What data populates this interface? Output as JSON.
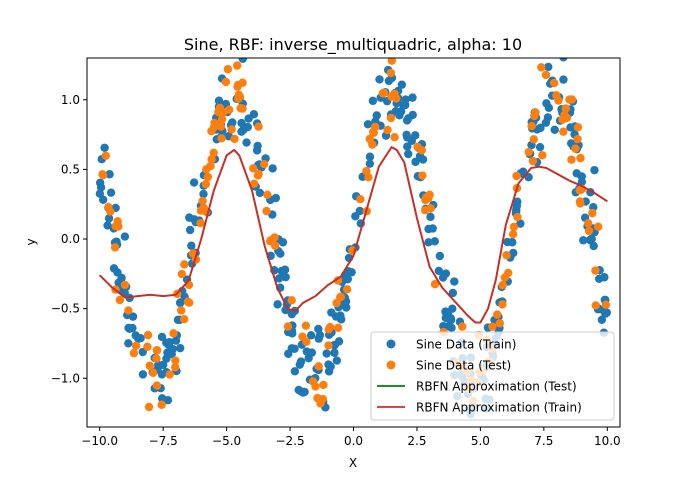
{
  "chart_data": {
    "type": "scatter",
    "title": "Sine, RBF: inverse_multiquadric, alpha: 10",
    "xlabel": "X",
    "ylabel": "y",
    "xlim": [
      -10.5,
      10.5
    ],
    "ylim": [
      -1.35,
      1.3
    ],
    "xticks": [
      -10,
      -7.5,
      -5,
      -2.5,
      0,
      2.5,
      5,
      7.5,
      10
    ],
    "xtick_labels": [
      "−10.0",
      "−7.5",
      "−5.0",
      "−2.5",
      "0.0",
      "2.5",
      "5.0",
      "7.5",
      "10.0"
    ],
    "yticks": [
      -1.0,
      -0.5,
      0.0,
      0.5,
      1.0
    ],
    "ytick_labels": [
      "−1.0",
      "−0.5",
      "0.0",
      "0.5",
      "1.0"
    ],
    "grid": false,
    "legend_position": "bottom-right",
    "series": [
      {
        "name": "Sine Data (Train)",
        "kind": "scatter",
        "color": "#1f77b4",
        "function": "sin(x) + noise",
        "x_range": [
          -10,
          10
        ],
        "noise": 0.15,
        "count": 400,
        "seed": 7
      },
      {
        "name": "Sine Data (Test)",
        "kind": "scatter",
        "color": "#ff7f0e",
        "function": "sin(x) + noise",
        "x_range": [
          -10,
          10
        ],
        "noise": 0.15,
        "count": 200,
        "seed": 13
      },
      {
        "name": "RBFN Approximation (Test)",
        "kind": "line",
        "color": "#008000",
        "x": [
          -10,
          -9.5,
          -9,
          -8.5,
          -8,
          -7.5,
          -7,
          -6.5,
          -6,
          -5.5,
          -5,
          -4.7,
          -4.5,
          -4,
          -3.5,
          -3,
          -2.6,
          -2.3,
          -2,
          -1.5,
          -1,
          -0.5,
          0,
          0.5,
          1,
          1.5,
          1.7,
          2,
          2.5,
          3,
          3.5,
          4,
          4.5,
          4.8,
          5,
          5.3,
          5.6,
          6,
          6.5,
          7,
          7.3,
          7.6,
          8,
          8.5,
          9,
          9.5,
          10
        ],
        "y": [
          -0.26,
          -0.35,
          -0.42,
          -0.41,
          -0.4,
          -0.41,
          -0.4,
          -0.3,
          0.0,
          0.35,
          0.6,
          0.64,
          0.6,
          0.35,
          -0.05,
          -0.35,
          -0.5,
          -0.52,
          -0.46,
          -0.41,
          -0.33,
          -0.27,
          -0.12,
          0.2,
          0.52,
          0.66,
          0.64,
          0.55,
          0.15,
          -0.2,
          -0.35,
          -0.45,
          -0.55,
          -0.6,
          -0.6,
          -0.5,
          -0.3,
          0.1,
          0.4,
          0.51,
          0.52,
          0.51,
          0.47,
          0.42,
          0.38,
          0.33,
          0.27
        ]
      },
      {
        "name": "RBFN Approximation (Train)",
        "kind": "line",
        "color": "#d62728",
        "x": [
          -10,
          -9.5,
          -9,
          -8.5,
          -8,
          -7.5,
          -7,
          -6.5,
          -6,
          -5.5,
          -5,
          -4.7,
          -4.5,
          -4,
          -3.5,
          -3,
          -2.6,
          -2.3,
          -2,
          -1.5,
          -1,
          -0.5,
          0,
          0.5,
          1,
          1.5,
          1.7,
          2,
          2.5,
          3,
          3.5,
          4,
          4.5,
          4.8,
          5,
          5.3,
          5.6,
          6,
          6.5,
          7,
          7.3,
          7.6,
          8,
          8.5,
          9,
          9.5,
          10
        ],
        "y": [
          -0.26,
          -0.35,
          -0.42,
          -0.41,
          -0.4,
          -0.41,
          -0.4,
          -0.3,
          0.0,
          0.35,
          0.6,
          0.64,
          0.6,
          0.35,
          -0.05,
          -0.35,
          -0.5,
          -0.52,
          -0.46,
          -0.41,
          -0.33,
          -0.27,
          -0.12,
          0.2,
          0.52,
          0.66,
          0.64,
          0.55,
          0.15,
          -0.2,
          -0.35,
          -0.45,
          -0.55,
          -0.6,
          -0.6,
          -0.5,
          -0.3,
          0.1,
          0.4,
          0.51,
          0.52,
          0.51,
          0.47,
          0.42,
          0.38,
          0.33,
          0.27
        ]
      }
    ]
  }
}
